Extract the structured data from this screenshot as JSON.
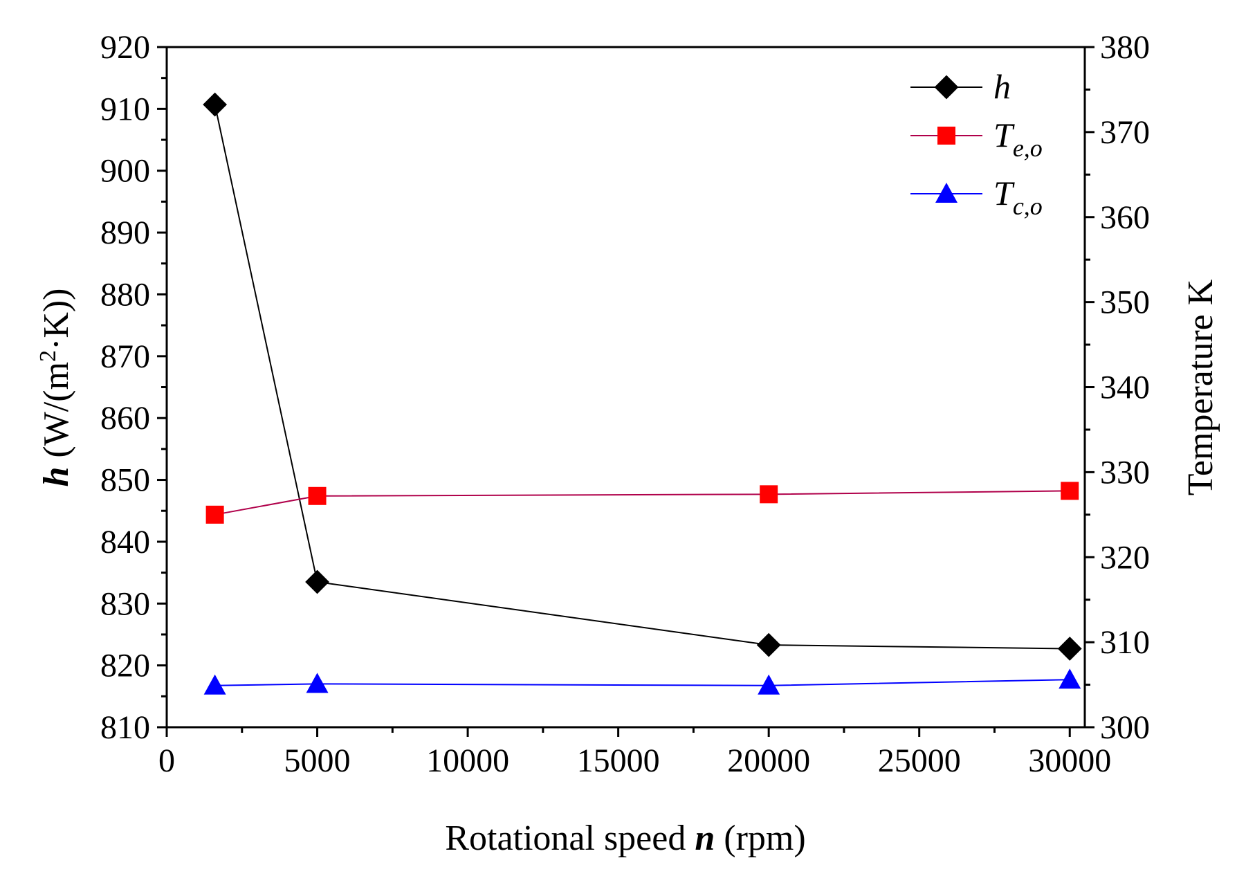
{
  "chart_data": {
    "type": "line",
    "x": [
      1600,
      5000,
      20000,
      30000
    ],
    "xlabel": {
      "prefix": "Rotational speed ",
      "var": "n",
      "suffix": " (rpm)"
    },
    "xlim": [
      0,
      30500
    ],
    "xticks": [
      0,
      5000,
      10000,
      15000,
      20000,
      25000,
      30000
    ],
    "y_left": {
      "label_var": "h",
      "label_pre": " (W/(m",
      "label_sup": "2",
      "label_post": "·K))",
      "lim": [
        810,
        920
      ],
      "ticks": [
        810,
        820,
        830,
        840,
        850,
        860,
        870,
        880,
        890,
        900,
        910,
        920
      ]
    },
    "y_right": {
      "label": "Temperature K",
      "lim": [
        300,
        380
      ],
      "ticks": [
        300,
        310,
        320,
        330,
        340,
        350,
        360,
        370,
        380
      ]
    },
    "series": [
      {
        "name": "h",
        "sub": "",
        "axis": "left",
        "color": "#000000",
        "marker": "diamond",
        "values": [
          910.7,
          833.5,
          823.3,
          822.7
        ]
      },
      {
        "name": "T",
        "sub": "e,o",
        "axis": "right",
        "color": "#ff0000",
        "line_color": "#b0004a",
        "marker": "square",
        "values": [
          325.0,
          327.2,
          327.4,
          327.8
        ]
      },
      {
        "name": "T",
        "sub": "c,o",
        "axis": "right",
        "color": "#0000ff",
        "line_color": "#0000ff",
        "marker": "triangle",
        "values": [
          304.9,
          305.1,
          304.9,
          305.6
        ]
      }
    ],
    "legend_position": "top-right",
    "grid": false
  }
}
